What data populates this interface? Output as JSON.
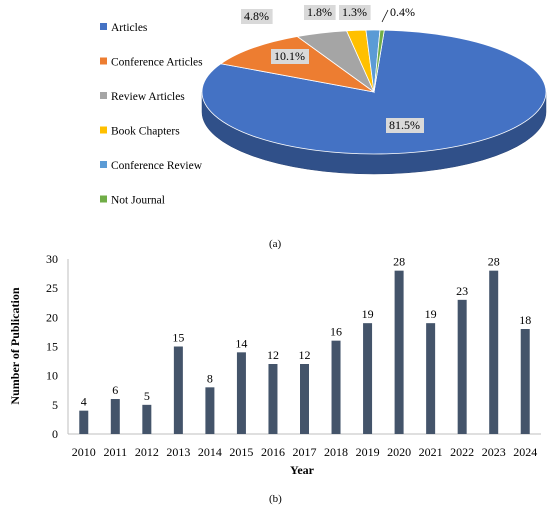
{
  "captions": {
    "a": "(a)",
    "b": "(b)"
  },
  "colors": {
    "articles": "#4472c4",
    "conference_articles": "#ed7d31",
    "review_articles": "#a5a5a5",
    "book_chapters": "#ffc000",
    "conference_review": "#5b9bd5",
    "not_journal": "#70ad47",
    "bar": "#44546a",
    "label_box": "#d9d9d9"
  },
  "chart_data": [
    {
      "type": "pie",
      "style": "3d",
      "legend_placement": "left",
      "categories": [
        "Articles",
        "Conference Articles",
        "Review Articles",
        "Book Chapters",
        "Conference Review",
        "Not Journal"
      ],
      "values": [
        81.5,
        10.1,
        4.8,
        1.8,
        1.3,
        0.4
      ],
      "labels": [
        "81.5%",
        "10.1%",
        "4.8%",
        "1.8%",
        "1.3%",
        "0.4%"
      ]
    },
    {
      "type": "bar",
      "categories": [
        "2010",
        "2011",
        "2012",
        "2013",
        "2014",
        "2015",
        "2016",
        "2017",
        "2018",
        "2019",
        "2020",
        "2021",
        "2022",
        "2023",
        "2024"
      ],
      "values": [
        4,
        6,
        5,
        15,
        8,
        14,
        12,
        12,
        16,
        19,
        28,
        19,
        23,
        28,
        18
      ],
      "xlabel": "Year",
      "ylabel": "Number of Publication",
      "ylim": [
        0,
        30
      ],
      "yticks": [
        "0",
        "5",
        "10",
        "15",
        "20",
        "25",
        "30"
      ],
      "grid": false
    }
  ]
}
